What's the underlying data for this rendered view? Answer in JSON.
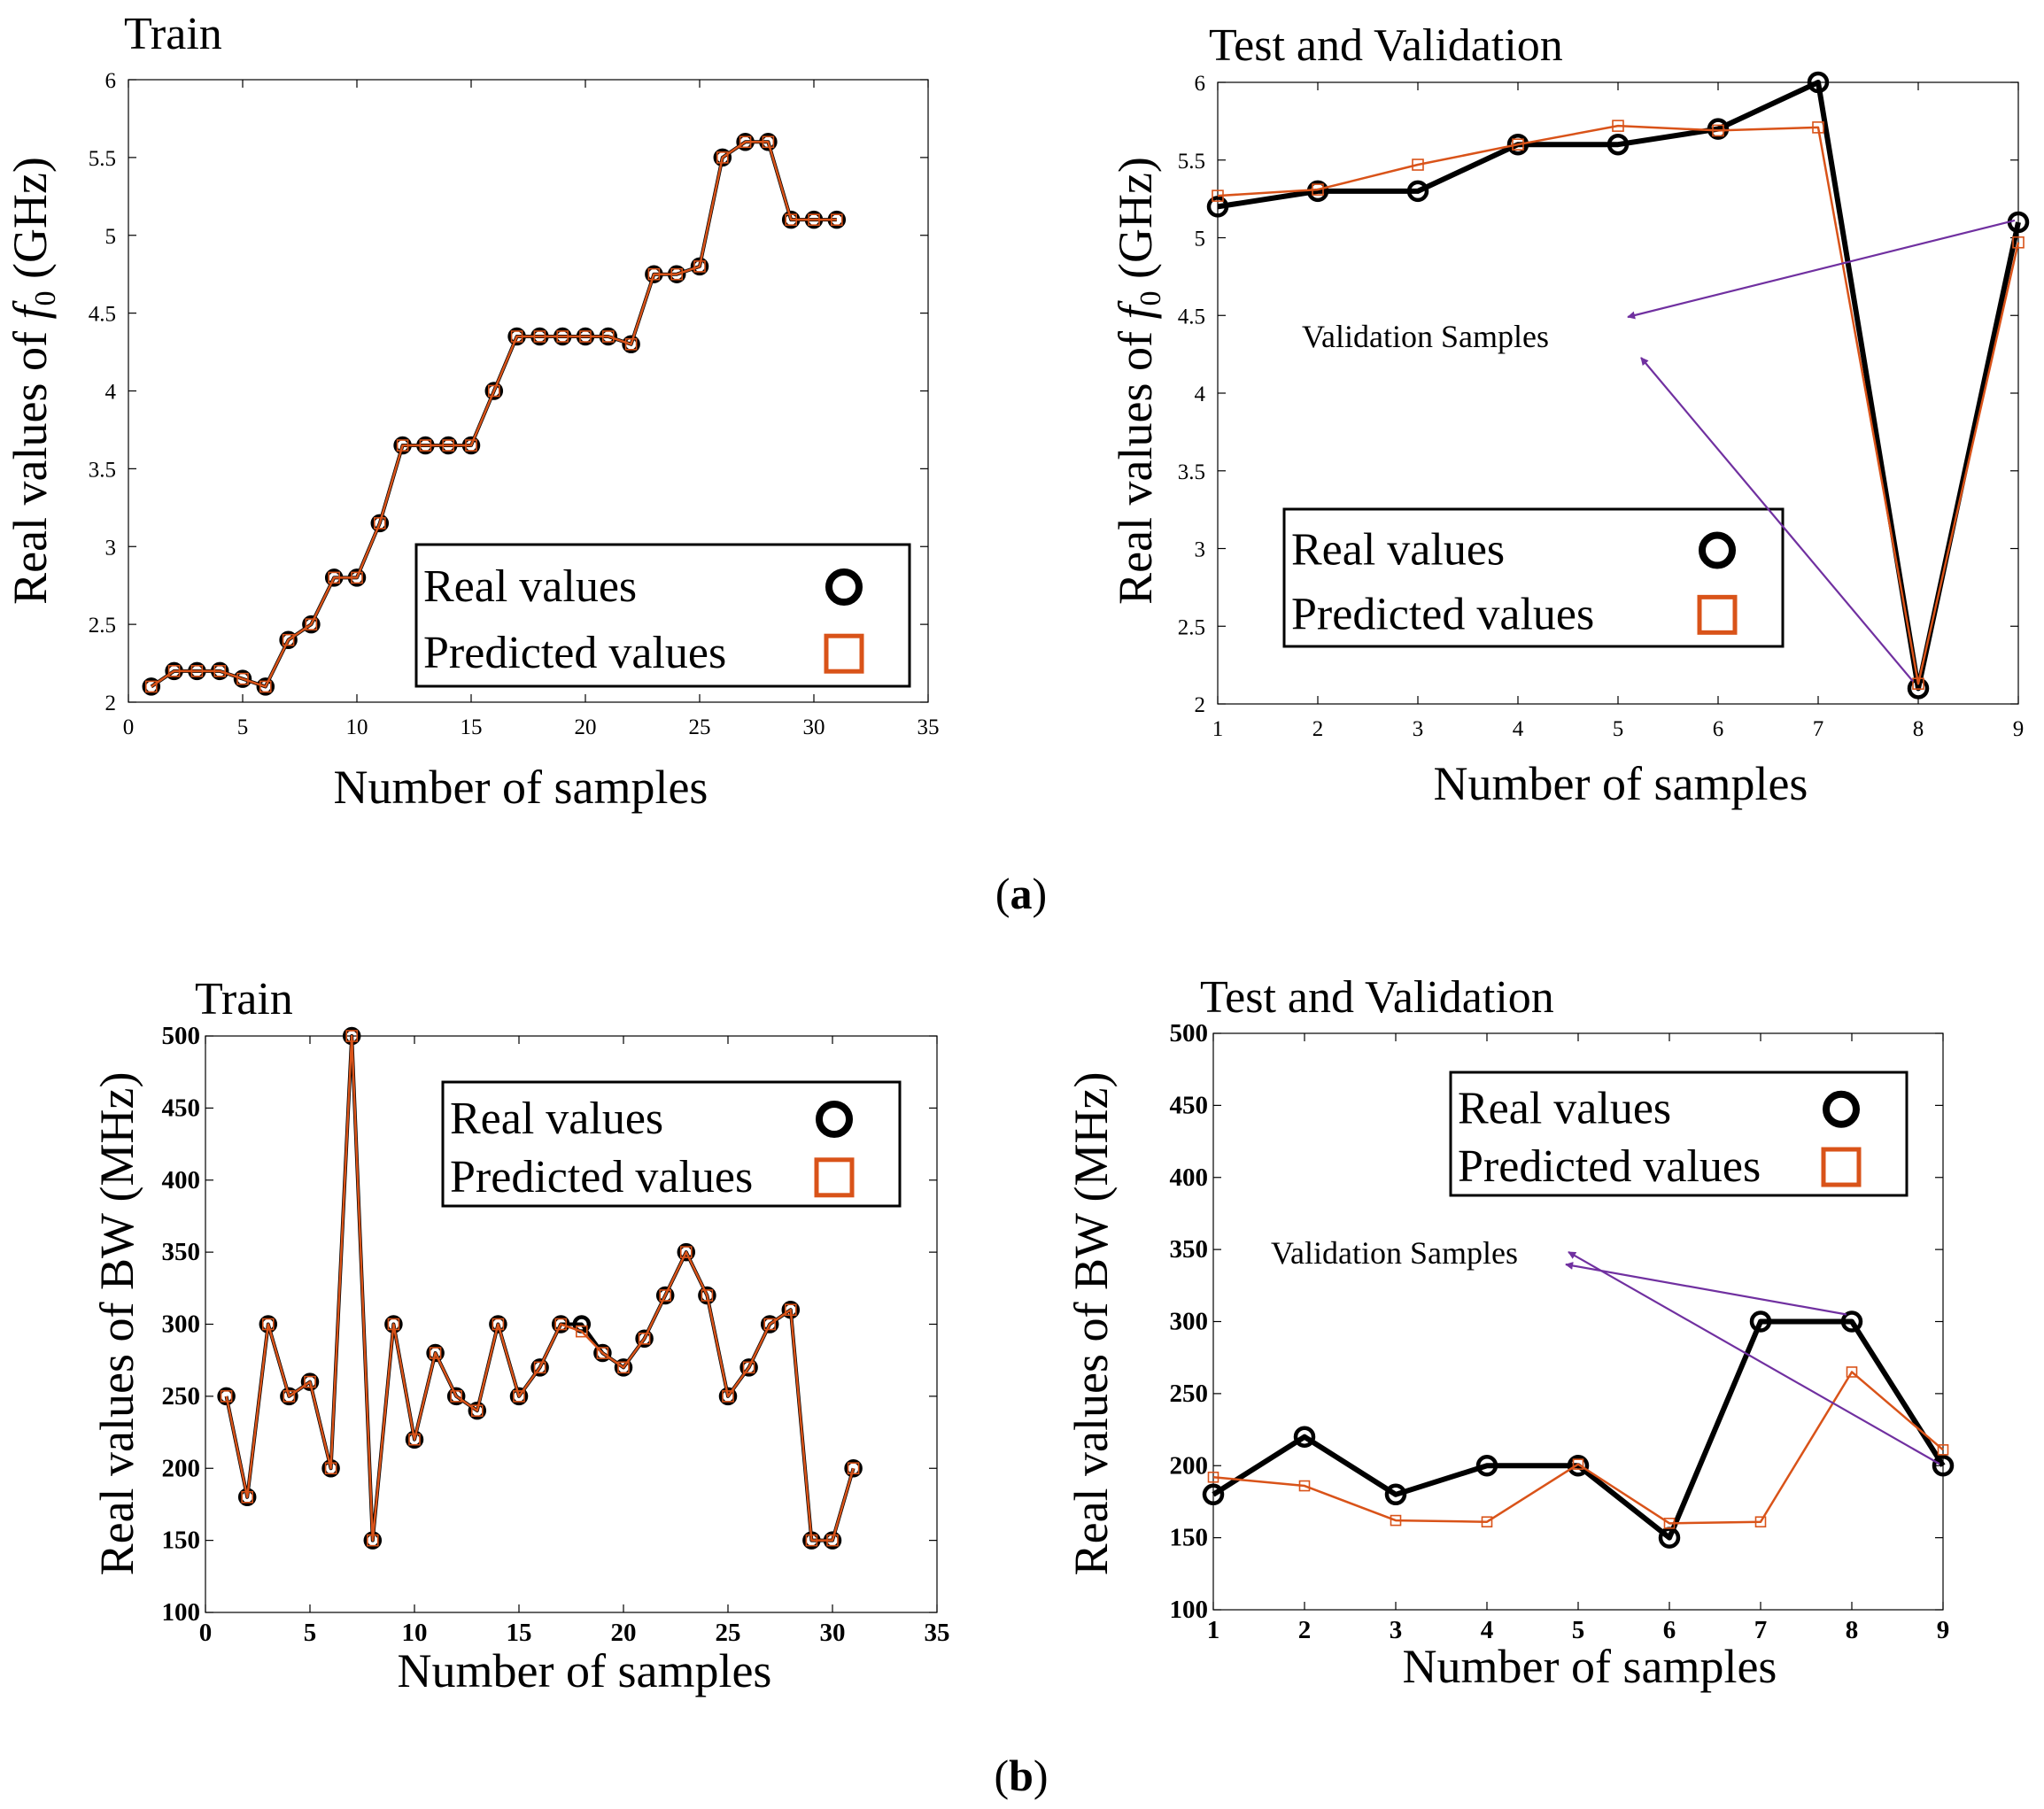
{
  "colors": {
    "real": "#000000",
    "predicted": "#D95319",
    "annotation": "#7030A0",
    "axes": "#000000"
  },
  "captions": {
    "a": {
      "open": "(",
      "letter": "a",
      "close": ")"
    },
    "b": {
      "open": "(",
      "letter": "b",
      "close": ")"
    }
  },
  "chart_data": [
    {
      "id": "a-train",
      "type": "line",
      "title": "Train",
      "xlabel": "Number of samples",
      "ylabel": {
        "prefix": "Real values of ",
        "symbol": "f",
        "subscript": "0",
        "suffix": " (GHz)"
      },
      "xlim": [
        0,
        35
      ],
      "ylim": [
        2,
        6
      ],
      "xticks": [
        0,
        5,
        10,
        15,
        20,
        25,
        30,
        35
      ],
      "yticks": [
        2,
        2.5,
        3,
        3.5,
        4,
        4.5,
        5,
        5.5,
        6
      ],
      "xtick_labels": [
        "0",
        "5",
        "10",
        "15",
        "20",
        "25",
        "30",
        "35"
      ],
      "ytick_labels": [
        "2",
        "2.5",
        "3",
        "3.5",
        "4",
        "4.5",
        "5",
        "5.5",
        "6"
      ],
      "legend": {
        "position": "lower-right",
        "entries": [
          "Real values",
          "Predicted values"
        ]
      },
      "x": [
        1,
        2,
        3,
        4,
        5,
        6,
        7,
        8,
        9,
        10,
        11,
        12,
        13,
        14,
        15,
        16,
        17,
        18,
        19,
        20,
        21,
        22,
        23,
        24,
        25,
        26,
        27,
        28,
        29,
        30,
        31
      ],
      "series": [
        {
          "name": "Real values",
          "marker": "circle",
          "values": [
            2.1,
            2.2,
            2.2,
            2.2,
            2.15,
            2.1,
            2.4,
            2.5,
            2.8,
            2.8,
            3.15,
            3.65,
            3.65,
            3.65,
            3.65,
            4.0,
            4.35,
            4.35,
            4.35,
            4.35,
            4.35,
            4.3,
            4.75,
            4.75,
            4.8,
            5.5,
            5.6,
            5.6,
            5.1,
            5.1,
            5.1
          ]
        },
        {
          "name": "Predicted values",
          "marker": "square",
          "values": [
            2.1,
            2.2,
            2.2,
            2.2,
            2.15,
            2.1,
            2.4,
            2.5,
            2.8,
            2.8,
            3.15,
            3.65,
            3.65,
            3.65,
            3.65,
            4.0,
            4.35,
            4.35,
            4.35,
            4.35,
            4.35,
            4.3,
            4.75,
            4.75,
            4.8,
            5.5,
            5.6,
            5.6,
            5.1,
            5.1,
            5.1
          ]
        }
      ]
    },
    {
      "id": "a-test",
      "type": "line",
      "title": "Test and Validation",
      "xlabel": "Number of samples",
      "ylabel": {
        "prefix": "Real values of ",
        "symbol": "f",
        "subscript": "0",
        "suffix": " (GHz)"
      },
      "xlim": [
        1,
        9
      ],
      "ylim": [
        2,
        6
      ],
      "xticks": [
        1,
        2,
        3,
        4,
        5,
        6,
        7,
        8,
        9
      ],
      "yticks": [
        2,
        2.5,
        3,
        3.5,
        4,
        4.5,
        5,
        5.5,
        6
      ],
      "xtick_labels": [
        "1",
        "2",
        "3",
        "4",
        "5",
        "6",
        "7",
        "8",
        "9"
      ],
      "ytick_labels": [
        "2",
        "2.5",
        "3",
        "3.5",
        "4",
        "4.5",
        "5",
        "5.5",
        "6"
      ],
      "legend": {
        "position": "lower-center",
        "entries": [
          "Real values",
          "Predicted values"
        ]
      },
      "annotation": {
        "text": "Validation Samples",
        "points_to_x": [
          8,
          9
        ]
      },
      "x": [
        1,
        2,
        3,
        4,
        5,
        6,
        7,
        8,
        9
      ],
      "series": [
        {
          "name": "Real values",
          "marker": "circle",
          "values": [
            5.2,
            5.3,
            5.3,
            5.6,
            5.6,
            5.7,
            6.0,
            2.1,
            5.1
          ]
        },
        {
          "name": "Predicted values",
          "marker": "square",
          "values": [
            5.27,
            5.31,
            5.47,
            5.6,
            5.72,
            5.69,
            5.71,
            2.13,
            4.97
          ]
        }
      ]
    },
    {
      "id": "b-train",
      "type": "line",
      "title": "Train",
      "xlabel": "Number of samples",
      "ylabel": {
        "prefix": "Real values of  BW (MHz)"
      },
      "xlim": [
        0,
        35
      ],
      "ylim": [
        100,
        500
      ],
      "xticks": [
        0,
        5,
        10,
        15,
        20,
        25,
        30,
        35
      ],
      "yticks": [
        100,
        150,
        200,
        250,
        300,
        350,
        400,
        450,
        500
      ],
      "xtick_labels": [
        "0",
        "5",
        "10",
        "15",
        "20",
        "25",
        "30",
        "35"
      ],
      "ytick_labels": [
        "100",
        "150",
        "200",
        "250",
        "300",
        "350",
        "400",
        "450",
        "500"
      ],
      "legend": {
        "position": "upper-right",
        "entries": [
          "Real values",
          "Predicted values"
        ]
      },
      "x": [
        1,
        2,
        3,
        4,
        5,
        6,
        7,
        8,
        9,
        10,
        11,
        12,
        13,
        14,
        15,
        16,
        17,
        18,
        19,
        20,
        21,
        22,
        23,
        24,
        25,
        26,
        27,
        28,
        29,
        30,
        31
      ],
      "series": [
        {
          "name": "Real values",
          "marker": "circle",
          "values": [
            250,
            180,
            300,
            250,
            260,
            200,
            500,
            150,
            300,
            220,
            280,
            250,
            240,
            300,
            250,
            270,
            300,
            300,
            280,
            270,
            290,
            320,
            350,
            320,
            250,
            270,
            300,
            310,
            150,
            150,
            200
          ]
        },
        {
          "name": "Predicted values",
          "marker": "square",
          "values": [
            250,
            180,
            300,
            250,
            260,
            200,
            500,
            150,
            300,
            220,
            280,
            250,
            240,
            300,
            250,
            270,
            300,
            295,
            280,
            270,
            290,
            320,
            350,
            320,
            250,
            270,
            300,
            310,
            150,
            150,
            200
          ]
        }
      ]
    },
    {
      "id": "b-test",
      "type": "line",
      "title": "Test and Validation",
      "xlabel": "Number of samples",
      "ylabel": {
        "prefix": "Real values of  BW (MHz)"
      },
      "xlim": [
        1,
        9
      ],
      "ylim": [
        100,
        500
      ],
      "xticks": [
        1,
        2,
        3,
        4,
        5,
        6,
        7,
        8,
        9
      ],
      "yticks": [
        100,
        150,
        200,
        250,
        300,
        350,
        400,
        450,
        500
      ],
      "xtick_labels": [
        "1",
        "2",
        "3",
        "4",
        "5",
        "6",
        "7",
        "8",
        "9"
      ],
      "ytick_labels": [
        "100",
        "150",
        "200",
        "250",
        "300",
        "350",
        "400",
        "450",
        "500"
      ],
      "legend": {
        "position": "upper-right",
        "entries": [
          "Real values",
          "Predicted values"
        ]
      },
      "annotation": {
        "text": "Validation Samples",
        "points_to_x": [
          8,
          9
        ]
      },
      "x": [
        1,
        2,
        3,
        4,
        5,
        6,
        7,
        8,
        9
      ],
      "series": [
        {
          "name": "Real values",
          "marker": "circle",
          "values": [
            180,
            220,
            180,
            200,
            200,
            150,
            300,
            300,
            200
          ]
        },
        {
          "name": "Predicted values",
          "marker": "square",
          "values": [
            192,
            186,
            162,
            161,
            201,
            160,
            161,
            265,
            211
          ]
        }
      ]
    }
  ]
}
